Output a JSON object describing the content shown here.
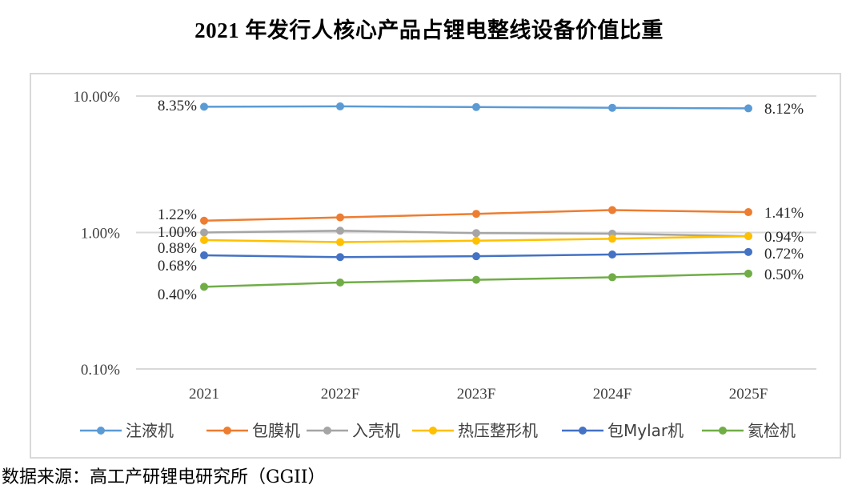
{
  "chart_data": {
    "type": "line",
    "title": "2021 年发行人核心产品占锂电整线设备价值比重",
    "xlabel": "",
    "ylabel": "",
    "yscale": "log",
    "ylim": [
      0.001,
      0.1
    ],
    "yticks": [
      {
        "value": 0.1,
        "label": "10.00%"
      },
      {
        "value": 0.01,
        "label": "1.00%"
      },
      {
        "value": 0.001,
        "label": "0.10%"
      }
    ],
    "grid": true,
    "legend": "bottom",
    "categories": [
      "2021",
      "2022F",
      "2023F",
      "2024F",
      "2025F"
    ],
    "series": [
      {
        "name": "注液机",
        "color": "#5B9BD5",
        "values": [
          0.0835,
          0.084,
          0.083,
          0.082,
          0.0812
        ],
        "labels": {
          "first": "8.35%",
          "last": "8.12%"
        }
      },
      {
        "name": "包膜机",
        "color": "#ED7D31",
        "values": [
          0.0122,
          0.0129,
          0.0137,
          0.0146,
          0.0141
        ],
        "labels": {
          "first": "1.22%",
          "last": "1.41%"
        }
      },
      {
        "name": "入壳机",
        "color": "#A5A5A5",
        "values": [
          0.01,
          0.0103,
          0.0099,
          0.0098,
          0.0094
        ],
        "labels": {
          "first": "1.00%",
          "last": ""
        }
      },
      {
        "name": "热压整形机",
        "color": "#FFC000",
        "values": [
          0.0088,
          0.0085,
          0.0087,
          0.009,
          0.0094
        ],
        "labels": {
          "first": "0.88%",
          "last": "0.94%"
        }
      },
      {
        "name": "包Mylar机",
        "color": "#4472C4",
        "values": [
          0.0068,
          0.0066,
          0.0067,
          0.0069,
          0.0072
        ],
        "labels": {
          "first": "0.68%",
          "last": "0.72%"
        }
      },
      {
        "name": "氦检机",
        "color": "#70AD47",
        "values": [
          0.004,
          0.0043,
          0.0045,
          0.0047,
          0.005
        ],
        "labels": {
          "first": "0.40%",
          "last": "0.50%"
        }
      }
    ]
  },
  "source_note": "数据来源：高工产研锂电研究所（GGII）"
}
